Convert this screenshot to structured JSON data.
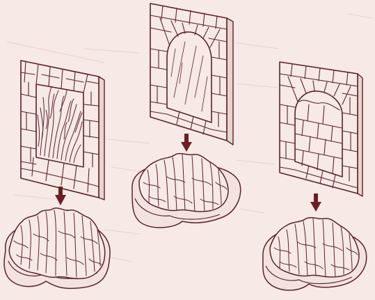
{
  "colors": {
    "paper": "#f6e9e6",
    "ink": "#5a2327",
    "arrow": "#6b1f25",
    "base": "#f3e3df",
    "show_through": "#e9d3cf"
  },
  "panels": [
    {
      "name": "panel-flames",
      "content": "flames"
    },
    {
      "name": "panel-window",
      "content": "glass-window"
    },
    {
      "name": "panel-bricked",
      "content": "bricked-arch"
    }
  ],
  "icons": [
    "down-arrow-icon",
    "rubble-pile-icon",
    "stone-wall-icon"
  ]
}
